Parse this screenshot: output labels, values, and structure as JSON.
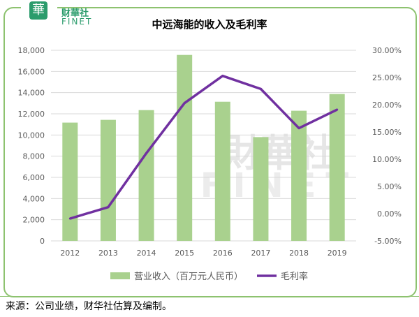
{
  "header": {
    "logo_text": "華",
    "brand_cn": "财華社",
    "brand_en": "FINET"
  },
  "watermark": {
    "cn": "財華社",
    "en": "FINET"
  },
  "footer": {
    "source": "来源：公司业绩，财华社估算及编制。"
  },
  "chart_data": {
    "type": "bar+line",
    "title": "中远海能的收入及毛利率",
    "categories": [
      "2012",
      "2013",
      "2014",
      "2015",
      "2016",
      "2017",
      "2018",
      "2019"
    ],
    "series": [
      {
        "name": "营业收入（百万元人民币）",
        "type": "bar",
        "axis": "left",
        "color": "#a9d18e",
        "values": [
          11170,
          11430,
          12350,
          17560,
          13140,
          9800,
          12290,
          13870
        ]
      },
      {
        "name": "毛利率",
        "type": "line",
        "axis": "right",
        "color": "#7030a0",
        "values": [
          -0.9,
          1.2,
          11.1,
          20.3,
          25.3,
          22.9,
          15.7,
          19.1
        ]
      }
    ],
    "y_left": {
      "min": 0,
      "max": 18000,
      "ticks": [
        "0",
        "2,000",
        "4,000",
        "6,000",
        "8,000",
        "10,000",
        "12,000",
        "14,000",
        "16,000",
        "18,000"
      ]
    },
    "y_right": {
      "min": -5,
      "max": 30,
      "ticks": [
        "-5.00%",
        "0.00%",
        "5.00%",
        "10.00%",
        "15.00%",
        "20.00%",
        "25.00%",
        "30.00%"
      ]
    },
    "grid": true,
    "legend": "bottom"
  }
}
